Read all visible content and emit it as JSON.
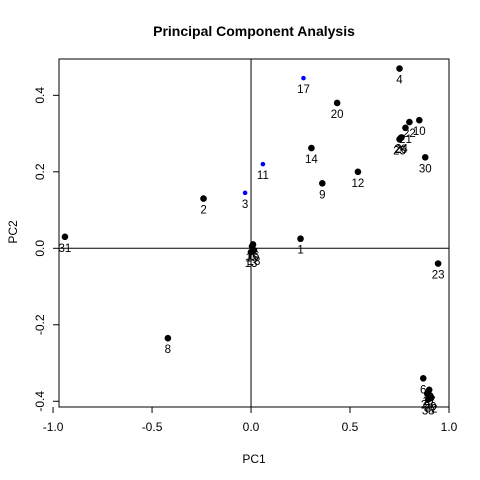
{
  "chart_data": {
    "type": "scatter",
    "title": "Principal Component Analysis",
    "xlabel": "PC1",
    "ylabel": "PC2",
    "xlim": [
      -1.0,
      1.0
    ],
    "ylim": [
      -0.4,
      0.5
    ],
    "xticks": [
      "-1.0",
      "-0.5",
      "0.0",
      "0.5",
      "1.0"
    ],
    "yticks": [
      "-0.4",
      "-0.2",
      "0.0",
      "0.2",
      "0.4"
    ],
    "reference_lines": {
      "x": 0,
      "y": 0
    },
    "colors": {
      "default": "#000000",
      "highlight": "#0000ff"
    },
    "points": [
      {
        "label": "1",
        "x": 0.25,
        "y": 0.025,
        "color": "#000000"
      },
      {
        "label": "2",
        "x": -0.24,
        "y": 0.13,
        "color": "#000000"
      },
      {
        "label": "3",
        "x": -0.03,
        "y": 0.145,
        "color": "#0000ff"
      },
      {
        "label": "4",
        "x": 0.75,
        "y": 0.47,
        "color": "#000000"
      },
      {
        "label": "6",
        "x": 0.87,
        "y": -0.34,
        "color": "#000000"
      },
      {
        "label": "8",
        "x": -0.42,
        "y": -0.235,
        "color": "#000000"
      },
      {
        "label": "9",
        "x": 0.36,
        "y": 0.17,
        "color": "#000000"
      },
      {
        "label": "10",
        "x": 0.85,
        "y": 0.335,
        "color": "#000000"
      },
      {
        "label": "11",
        "x": 0.06,
        "y": 0.22,
        "color": "#0000ff"
      },
      {
        "label": "12",
        "x": 0.54,
        "y": 0.2,
        "color": "#000000"
      },
      {
        "label": "13",
        "x": 0.0,
        "y": -0.01,
        "color": "#000000"
      },
      {
        "label": "14",
        "x": 0.305,
        "y": 0.262,
        "color": "#000000"
      },
      {
        "label": "15",
        "x": 0.005,
        "y": 0.005,
        "color": "#000000"
      },
      {
        "label": "16",
        "x": 0.01,
        "y": 0.01,
        "color": "#000000"
      },
      {
        "label": "17",
        "x": 0.265,
        "y": 0.445,
        "color": "#0000ff"
      },
      {
        "label": "18",
        "x": 0.015,
        "y": -0.005,
        "color": "#000000"
      },
      {
        "label": "20",
        "x": 0.435,
        "y": 0.38,
        "color": "#000000"
      },
      {
        "label": "21",
        "x": 0.78,
        "y": 0.315,
        "color": "#000000"
      },
      {
        "label": "22",
        "x": 0.8,
        "y": 0.33,
        "color": "#000000"
      },
      {
        "label": "23",
        "x": 0.945,
        "y": -0.04,
        "color": "#000000"
      },
      {
        "label": "24",
        "x": 0.76,
        "y": 0.29,
        "color": "#000000"
      },
      {
        "label": "25",
        "x": 0.75,
        "y": 0.285,
        "color": "#000000"
      },
      {
        "label": "26",
        "x": 0.755,
        "y": 0.288,
        "color": "#000000"
      },
      {
        "label": "27",
        "x": 0.9,
        "y": -0.37,
        "color": "#000000"
      },
      {
        "label": "28",
        "x": 0.89,
        "y": -0.38,
        "color": "#000000"
      },
      {
        "label": "29",
        "x": 0.905,
        "y": -0.385,
        "color": "#000000"
      },
      {
        "label": "30",
        "x": 0.88,
        "y": 0.238,
        "color": "#000000"
      },
      {
        "label": "31",
        "x": -0.94,
        "y": 0.03,
        "color": "#000000"
      },
      {
        "label": "32",
        "x": 0.91,
        "y": -0.39,
        "color": "#000000"
      },
      {
        "label": "33",
        "x": 0.895,
        "y": -0.395,
        "color": "#000000"
      }
    ]
  }
}
